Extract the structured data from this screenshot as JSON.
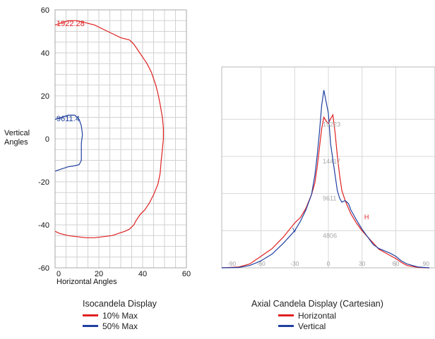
{
  "chart_data": [
    {
      "type": "line",
      "title": "Isocandela Display",
      "xlabel": "Horizontal Angles",
      "ylabel": "Vertical Angles",
      "xlim": [
        0,
        60
      ],
      "ylim": [
        -60,
        60
      ],
      "x_ticks": [
        0,
        20,
        40,
        60
      ],
      "y_ticks": [
        60,
        40,
        20,
        0,
        -20,
        -40,
        -60
      ],
      "grid": true,
      "series": [
        {
          "name": "10% Max",
          "color": "#e02020",
          "label": "1922.28",
          "points": [
            [
              0,
              53
            ],
            [
              3,
              54
            ],
            [
              6,
              55
            ],
            [
              10,
              55
            ],
            [
              14,
              54
            ],
            [
              18,
              53
            ],
            [
              22,
              51
            ],
            [
              26,
              49
            ],
            [
              30,
              47
            ],
            [
              34,
              46
            ],
            [
              36,
              44
            ],
            [
              38,
              41
            ],
            [
              40,
              38
            ],
            [
              42,
              35
            ],
            [
              44,
              31
            ],
            [
              46,
              25
            ],
            [
              47,
              21
            ],
            [
              48,
              16
            ],
            [
              49,
              10
            ],
            [
              49.5,
              5
            ],
            [
              49.5,
              0
            ],
            [
              49,
              -5
            ],
            [
              48.5,
              -10
            ],
            [
              48,
              -16
            ],
            [
              47,
              -21
            ],
            [
              45,
              -26
            ],
            [
              43,
              -30
            ],
            [
              41,
              -33
            ],
            [
              39,
              -35
            ],
            [
              37,
              -38
            ],
            [
              36,
              -40
            ],
            [
              34,
              -42
            ],
            [
              32,
              -43
            ],
            [
              29,
              -44
            ],
            [
              26,
              -45
            ],
            [
              22,
              -45.5
            ],
            [
              18,
              -46
            ],
            [
              14,
              -46
            ],
            [
              10,
              -45.5
            ],
            [
              6,
              -45
            ],
            [
              2,
              -44
            ],
            [
              0,
              -43
            ]
          ]
        },
        {
          "name": "50% Max",
          "color": "#2040a0",
          "label": "9611.4",
          "points": [
            [
              0,
              9
            ],
            [
              3,
              10
            ],
            [
              6,
              11
            ],
            [
              9,
              11
            ],
            [
              11,
              9
            ],
            [
              12,
              6
            ],
            [
              12.5,
              2
            ],
            [
              12,
              -2
            ],
            [
              12,
              -6
            ],
            [
              12,
              -10
            ],
            [
              11,
              -12
            ],
            [
              9,
              -12.5
            ],
            [
              6,
              -13
            ],
            [
              3,
              -14
            ],
            [
              0,
              -15
            ]
          ]
        }
      ]
    },
    {
      "type": "line",
      "title": "Axial Candela Display (Cartesian)",
      "xlim": [
        -95,
        95
      ],
      "ylim": [
        0,
        26000
      ],
      "x_ticks": [
        -90,
        -60,
        -30,
        0,
        30,
        60,
        90
      ],
      "y_tick_labels": [
        {
          "value": 19223,
          "label": "19223"
        },
        {
          "value": 14417,
          "label": "14417"
        },
        {
          "value": 9611,
          "label": "9611"
        },
        {
          "value": 4806,
          "label": "4806"
        }
      ],
      "grid": true,
      "series": [
        {
          "name": "Horizontal",
          "color": "#e02020",
          "marker_label": "H",
          "points": [
            [
              -95,
              0
            ],
            [
              -80,
              100
            ],
            [
              -70,
              500
            ],
            [
              -60,
              1500
            ],
            [
              -50,
              2500
            ],
            [
              -40,
              4000
            ],
            [
              -30,
              5800
            ],
            [
              -25,
              6500
            ],
            [
              -20,
              7700
            ],
            [
              -15,
              9500
            ],
            [
              -12,
              11000
            ],
            [
              -10,
              13000
            ],
            [
              -8,
              15500
            ],
            [
              -6,
              18000
            ],
            [
              -4,
              19500
            ],
            [
              -2,
              19000
            ],
            [
              0,
              18700
            ],
            [
              2,
              19300
            ],
            [
              4,
              19800
            ],
            [
              6,
              17500
            ],
            [
              8,
              14500
            ],
            [
              10,
              12000
            ],
            [
              12,
              10000
            ],
            [
              15,
              8700
            ],
            [
              20,
              7000
            ],
            [
              25,
              5800
            ],
            [
              30,
              4800
            ],
            [
              35,
              4000
            ],
            [
              40,
              3200
            ],
            [
              45,
              2400
            ],
            [
              50,
              2000
            ],
            [
              55,
              1600
            ],
            [
              60,
              1200
            ],
            [
              65,
              700
            ],
            [
              70,
              300
            ],
            [
              80,
              50
            ],
            [
              90,
              0
            ]
          ]
        },
        {
          "name": "Vertical",
          "color": "#2040a0",
          "marker_label": "V",
          "points": [
            [
              -95,
              0
            ],
            [
              -80,
              50
            ],
            [
              -70,
              300
            ],
            [
              -60,
              900
            ],
            [
              -50,
              1800
            ],
            [
              -40,
              3200
            ],
            [
              -35,
              4000
            ],
            [
              -30,
              4800
            ],
            [
              -25,
              6000
            ],
            [
              -20,
              7500
            ],
            [
              -15,
              9500
            ],
            [
              -12,
              12000
            ],
            [
              -10,
              14500
            ],
            [
              -8,
              17500
            ],
            [
              -6,
              21000
            ],
            [
              -4,
              23000
            ],
            [
              -2,
              21500
            ],
            [
              0,
              20000
            ],
            [
              2,
              16000
            ],
            [
              4,
              14000
            ],
            [
              6,
              12000
            ],
            [
              8,
              10000
            ],
            [
              10,
              9000
            ],
            [
              12,
              8500
            ],
            [
              15,
              8700
            ],
            [
              18,
              8300
            ],
            [
              20,
              7500
            ],
            [
              25,
              6200
            ],
            [
              30,
              5000
            ],
            [
              35,
              4000
            ],
            [
              40,
              3000
            ],
            [
              45,
              2500
            ],
            [
              50,
              2200
            ],
            [
              55,
              1900
            ],
            [
              60,
              1500
            ],
            [
              65,
              900
            ],
            [
              70,
              500
            ],
            [
              80,
              100
            ],
            [
              90,
              0
            ]
          ]
        }
      ]
    }
  ]
}
